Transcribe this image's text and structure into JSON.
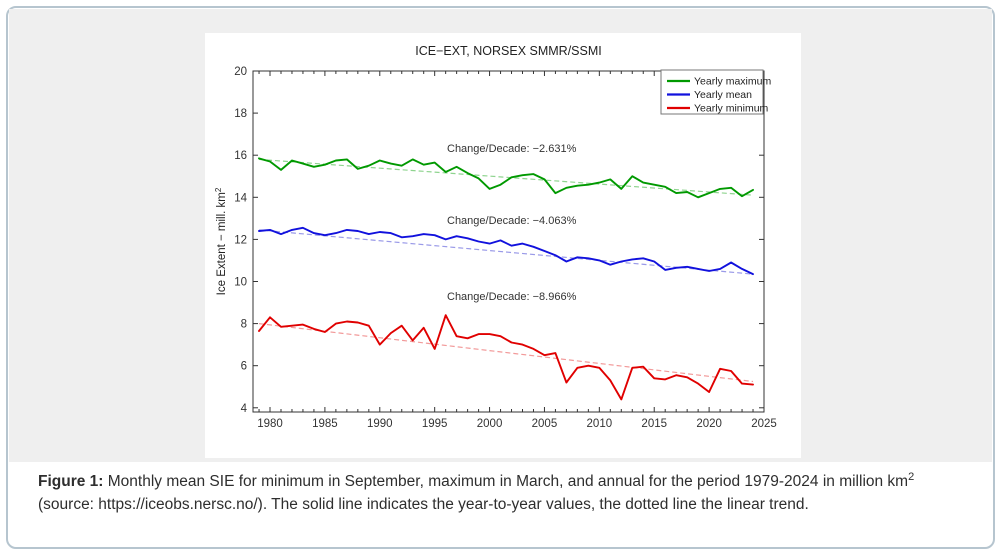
{
  "colors": {
    "frame_border": "#b6c5cf",
    "figure_background": "#efefef",
    "chart_background": "#ffffff",
    "axis": "#333333",
    "tick_label": "#333333"
  },
  "figure": {
    "caption": {
      "label": "Figure 1:",
      "text_main": " Monthly mean SIE for minimum in September, maximum in March, and annual for the period 1979-2024 in million km",
      "sup": "2",
      "text_rest": "(source: https://iceobs.nersc.no/). The solid line indicates the year-to-year values, the dotted line the linear trend."
    }
  },
  "chart_data": {
    "type": "line",
    "title": "ICE−EXT, NORSEX SMMR/SSMI",
    "ylabel_base": "Ice Extent − mill. km",
    "ylabel_sup": "2",
    "xlabel": "",
    "xlim": [
      1978.45,
      2025.0
    ],
    "ylim": [
      3.8,
      20
    ],
    "xticks": [
      1980,
      1985,
      1990,
      1995,
      2000,
      2005,
      2010,
      2015,
      2020,
      2025
    ],
    "yticks": [
      4,
      6,
      8,
      10,
      12,
      14,
      16,
      18,
      20
    ],
    "minor_xtick_start": 1979,
    "minor_xtick_end": 2025,
    "grid": false,
    "legend_position": "top-right",
    "years": [
      1979,
      1980,
      1981,
      1982,
      1983,
      1984,
      1985,
      1986,
      1987,
      1988,
      1989,
      1990,
      1991,
      1992,
      1993,
      1994,
      1995,
      1996,
      1997,
      1998,
      1999,
      2000,
      2001,
      2002,
      2003,
      2004,
      2005,
      2006,
      2007,
      2008,
      2009,
      2010,
      2011,
      2012,
      2013,
      2014,
      2015,
      2016,
      2017,
      2018,
      2019,
      2020,
      2021,
      2022,
      2023,
      2024
    ],
    "series": [
      {
        "name": "Yearly maximum",
        "color": "#009900",
        "trend_color": "#8fd48f",
        "annotation": "Change/Decade: −2.631%",
        "values": [
          15.85,
          15.7,
          15.3,
          15.75,
          15.6,
          15.45,
          15.55,
          15.75,
          15.8,
          15.35,
          15.5,
          15.75,
          15.6,
          15.5,
          15.8,
          15.55,
          15.65,
          15.2,
          15.45,
          15.15,
          14.9,
          14.4,
          14.6,
          14.95,
          15.05,
          15.1,
          14.85,
          14.2,
          14.45,
          14.55,
          14.6,
          14.7,
          14.85,
          14.4,
          15.0,
          14.7,
          14.6,
          14.5,
          14.2,
          14.25,
          14.0,
          14.2,
          14.4,
          14.45,
          14.05,
          14.35
        ],
        "trend": {
          "start_year": 1979,
          "start_value": 15.8,
          "end_year": 2024,
          "end_value": 14.1
        }
      },
      {
        "name": "Yearly mean",
        "color": "#1111dd",
        "trend_color": "#9a9ae8",
        "annotation": "Change/Decade: −4.063%",
        "values": [
          12.4,
          12.45,
          12.25,
          12.45,
          12.55,
          12.3,
          12.2,
          12.3,
          12.45,
          12.4,
          12.25,
          12.35,
          12.3,
          12.1,
          12.15,
          12.25,
          12.2,
          12.0,
          12.15,
          12.05,
          11.9,
          11.8,
          11.95,
          11.7,
          11.8,
          11.65,
          11.45,
          11.25,
          10.95,
          11.15,
          11.1,
          11.0,
          10.8,
          10.95,
          11.05,
          11.1,
          10.95,
          10.55,
          10.65,
          10.7,
          10.6,
          10.5,
          10.6,
          10.9,
          10.6,
          10.35
        ],
        "trend": {
          "start_year": 1979,
          "start_value": 12.45,
          "end_year": 2024,
          "end_value": 10.35
        }
      },
      {
        "name": "Yearly minimum",
        "color": "#e00000",
        "trend_color": "#f29a9a",
        "annotation": "Change/Decade: −8.966%",
        "values": [
          7.65,
          8.3,
          7.85,
          7.9,
          7.95,
          7.75,
          7.6,
          8.0,
          8.1,
          8.05,
          7.9,
          7.0,
          7.55,
          7.9,
          7.2,
          7.8,
          6.8,
          8.4,
          7.4,
          7.3,
          7.5,
          7.5,
          7.4,
          7.1,
          7.0,
          6.8,
          6.5,
          6.6,
          5.2,
          5.9,
          6.0,
          5.9,
          5.3,
          4.4,
          5.9,
          5.95,
          5.4,
          5.35,
          5.55,
          5.45,
          5.15,
          4.75,
          5.85,
          5.75,
          5.15,
          5.1
        ],
        "trend": {
          "start_year": 1979,
          "start_value": 8.0,
          "end_year": 2024,
          "end_value": 5.25
        }
      }
    ]
  }
}
